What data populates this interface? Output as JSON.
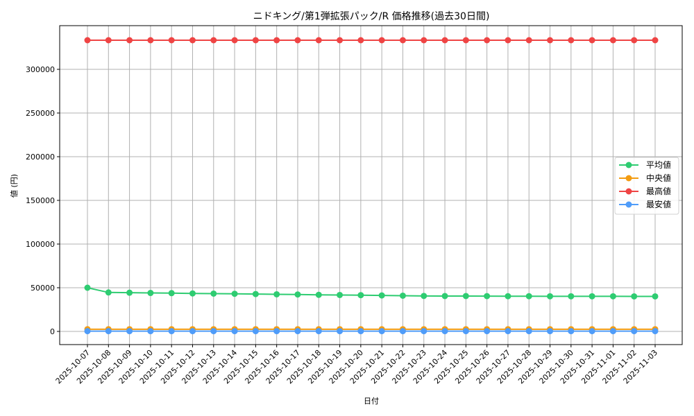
{
  "chart_data": {
    "type": "line",
    "title": "ニドキング/第1弾拡張パック/R 価格推移(過去30日間)",
    "xlabel": "日付",
    "ylabel": "値 (円)",
    "ylim": [
      -15000,
      345000
    ],
    "yticks": [
      0,
      50000,
      100000,
      150000,
      200000,
      250000,
      300000
    ],
    "grid": true,
    "legend_position": "center right",
    "x": [
      "2025-10-07",
      "2025-10-08",
      "2025-10-09",
      "2025-10-10",
      "2025-10-11",
      "2025-10-12",
      "2025-10-13",
      "2025-10-14",
      "2025-10-15",
      "2025-10-16",
      "2025-10-17",
      "2025-10-18",
      "2025-10-19",
      "2025-10-20",
      "2025-10-21",
      "2025-10-22",
      "2025-10-23",
      "2025-10-24",
      "2025-10-25",
      "2025-10-26",
      "2025-10-27",
      "2025-10-28",
      "2025-10-29",
      "2025-10-30",
      "2025-10-31",
      "2025-11-01",
      "2025-11-02",
      "2025-11-03"
    ],
    "series": [
      {
        "name": "平均値",
        "color": "#2ecc71",
        "values": [
          50000,
          44600,
          44300,
          44000,
          43800,
          43500,
          43300,
          43100,
          42800,
          42500,
          42300,
          41900,
          41700,
          41500,
          41200,
          40900,
          40600,
          40500,
          40500,
          40400,
          40300,
          40300,
          40200,
          40200,
          40200,
          40200,
          40100,
          40100
        ]
      },
      {
        "name": "中央値",
        "color": "#f39c12",
        "values": [
          2500,
          2500,
          2500,
          2500,
          2500,
          2500,
          2500,
          2500,
          2500,
          2500,
          2500,
          2500,
          2500,
          2500,
          2500,
          2500,
          2500,
          2500,
          2500,
          2500,
          2500,
          2500,
          2500,
          2500,
          2500,
          2500,
          2500,
          2500
        ]
      },
      {
        "name": "最高値",
        "color": "#ef4444",
        "values": [
          333333,
          333333,
          333333,
          333333,
          333333,
          333333,
          333333,
          333333,
          333333,
          333333,
          333333,
          333333,
          333333,
          333333,
          333333,
          333333,
          333333,
          333333,
          333333,
          333333,
          333333,
          333333,
          333333,
          333333,
          333333,
          333333,
          333333,
          333333
        ]
      },
      {
        "name": "最安値",
        "color": "#4f9cf9",
        "values": [
          300,
          300,
          300,
          300,
          300,
          300,
          300,
          300,
          300,
          300,
          300,
          300,
          300,
          300,
          300,
          300,
          300,
          300,
          300,
          300,
          300,
          300,
          300,
          300,
          300,
          300,
          300,
          300
        ]
      }
    ]
  }
}
